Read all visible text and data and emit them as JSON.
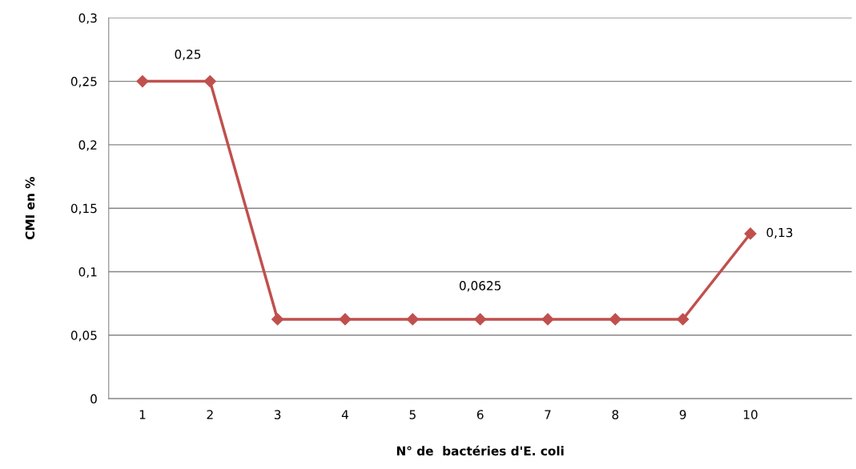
{
  "chart_data": {
    "type": "line",
    "xlabel": "N° de  bactéries d'E. coli",
    "ylabel": "CMI en %",
    "categories": [
      "1",
      "2",
      "3",
      "4",
      "5",
      "6",
      "7",
      "8",
      "9",
      "10",
      null
    ],
    "series": [
      {
        "color": "#c0504d",
        "values": [
          0.25,
          0.25,
          0.0625,
          0.0625,
          0.0625,
          0.0625,
          0.0625,
          0.0625,
          0.0625,
          0.13,
          null
        ],
        "value_labels": [
          null,
          "0,25",
          null,
          null,
          null,
          "0,0625",
          null,
          null,
          null,
          "0,13",
          null
        ]
      }
    ],
    "ylim": [
      0,
      0.3
    ],
    "yticks": [
      {
        "value": 0,
        "label": "0"
      },
      {
        "value": 0.05,
        "label": "0,05"
      },
      {
        "value": 0.1,
        "label": "0,1"
      },
      {
        "value": 0.15,
        "label": "0,15"
      },
      {
        "value": 0.2,
        "label": "0,2"
      },
      {
        "value": 0.25,
        "label": "0,25"
      },
      {
        "value": 0.3,
        "label": "0,3"
      }
    ],
    "grid": "y",
    "legend": false,
    "marker": "diamond",
    "line_style": "solid"
  }
}
